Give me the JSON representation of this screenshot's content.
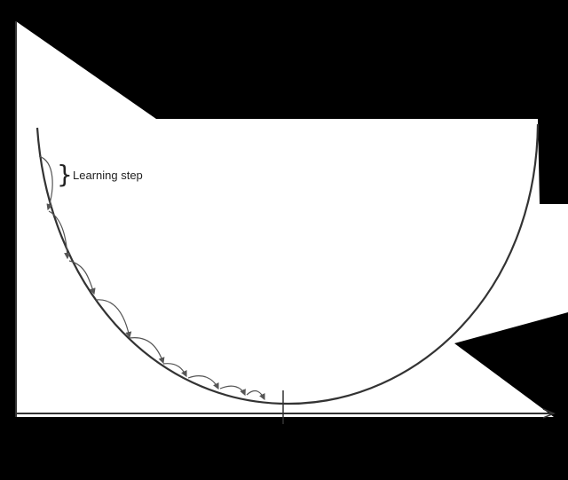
{
  "annotation": {
    "brace": "}",
    "label": "Learning step"
  },
  "colors": {
    "background": "#000000",
    "panel": "#ffffff",
    "curve": "#333333",
    "step_arrow": "#555555"
  },
  "icons": [
    "brace-icon",
    "arrowhead-icon"
  ]
}
